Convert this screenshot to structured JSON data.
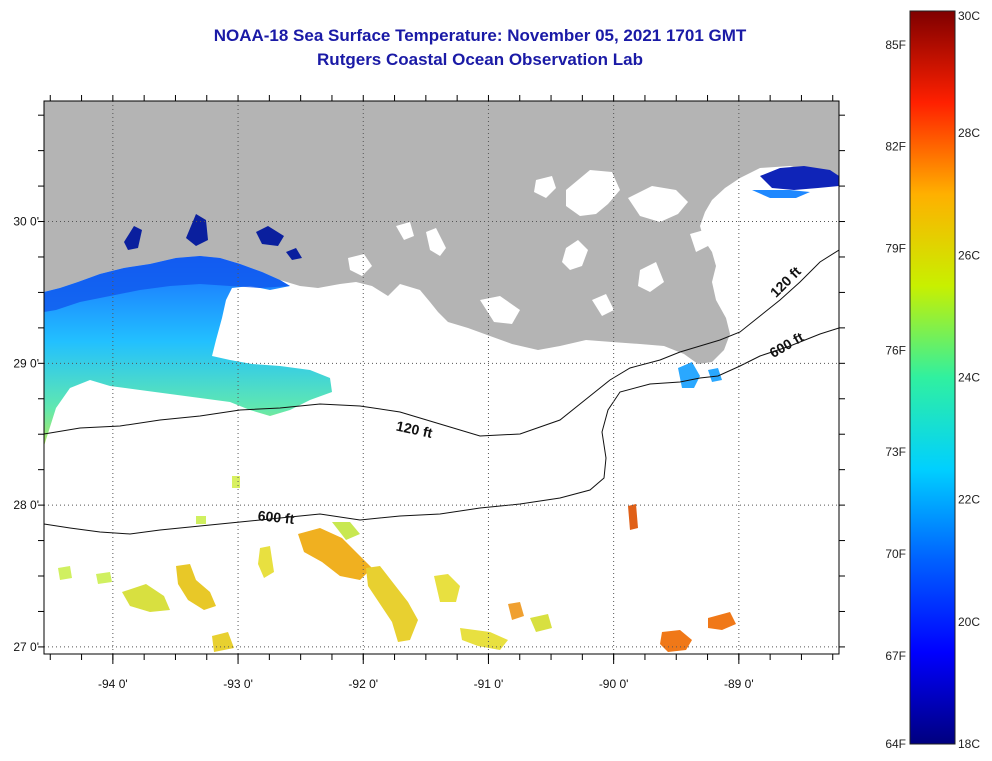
{
  "title": {
    "line1": "NOAA-18 Sea Surface Temperature:  November 05, 2021 1701 GMT",
    "line2": "Rutgers Coastal Ocean Observation Lab"
  },
  "map": {
    "lon_range": [
      -94.55,
      -88.2
    ],
    "lat_range": [
      26.95,
      30.85
    ],
    "lon_ticks": [
      {
        "value": -94,
        "label": "-94 0'"
      },
      {
        "value": -93,
        "label": "-93 0'"
      },
      {
        "value": -92,
        "label": "-92 0'"
      },
      {
        "value": -91,
        "label": "-91 0'"
      },
      {
        "value": -90,
        "label": "-90 0'"
      },
      {
        "value": -89,
        "label": "-89 0'"
      }
    ],
    "lat_ticks": [
      {
        "value": 30,
        "label": "30 0'"
      },
      {
        "value": 29,
        "label": "29 0'"
      },
      {
        "value": 28,
        "label": "28 0'"
      },
      {
        "value": 27,
        "label": "27 0'"
      }
    ],
    "contour_labels": [
      {
        "text": "120 ft",
        "lon": -91.6,
        "lat": 28.5
      },
      {
        "text": "600 ft",
        "lon": -92.7,
        "lat": 27.88
      },
      {
        "text": "120 ft",
        "lon": -88.6,
        "lat": 29.55
      },
      {
        "text": "600 ft",
        "lon": -88.6,
        "lat": 29.1
      }
    ],
    "colors": {
      "land": "#b4b4b4",
      "ocean_nodata": "#ffffff",
      "gridline": "#555555"
    }
  },
  "colorbar": {
    "colors": [
      "#00007f",
      "#0000ff",
      "#007fff",
      "#00ffff",
      "#7fff7f",
      "#ffff00",
      "#ff7f00",
      "#ff0000",
      "#7f0000"
    ],
    "celsius_labels": [
      {
        "value": 30,
        "text": "30C"
      },
      {
        "value": 28,
        "text": "28C"
      },
      {
        "value": 26,
        "text": "26C"
      },
      {
        "value": 24,
        "text": "24C"
      },
      {
        "value": 22,
        "text": "22C"
      },
      {
        "value": 20,
        "text": "20C"
      },
      {
        "value": 18,
        "text": "18C"
      }
    ],
    "fahrenheit_labels": [
      {
        "value": 85,
        "text": "85F"
      },
      {
        "value": 82,
        "text": "82F"
      },
      {
        "value": 79,
        "text": "79F"
      },
      {
        "value": 76,
        "text": "76F"
      },
      {
        "value": 73,
        "text": "73F"
      },
      {
        "value": 70,
        "text": "70F"
      },
      {
        "value": 67,
        "text": "67F"
      },
      {
        "value": 64,
        "text": "64F"
      }
    ]
  }
}
